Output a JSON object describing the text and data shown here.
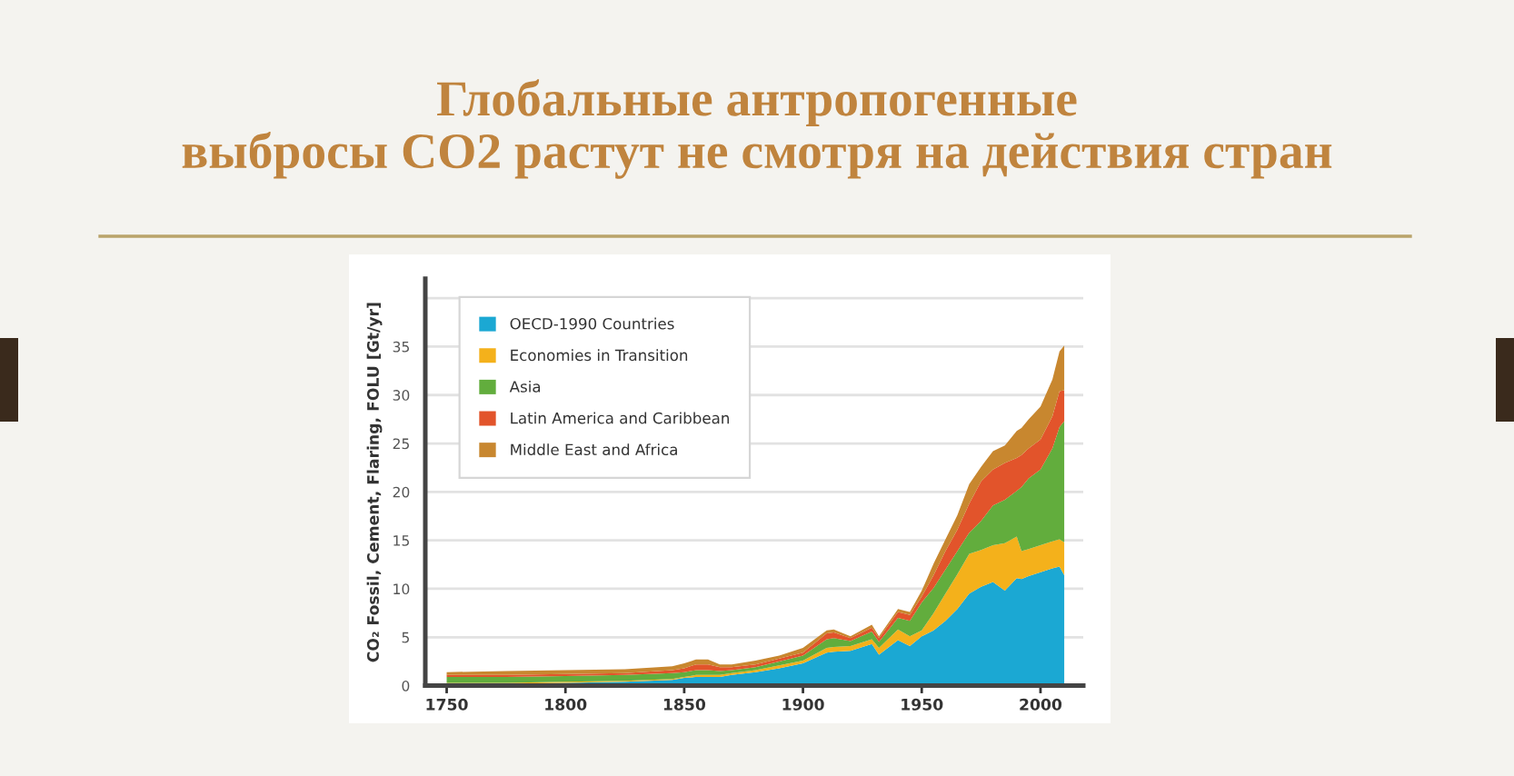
{
  "chart_data": {
    "type": "area",
    "stacked": true,
    "title": "Глобальные антропогенные\nвыбросы CO2 растут не смотря на действия стран",
    "ylabel": "CO₂ Fossil, Cement, Flaring, FOLU [Gt/yr]",
    "x": [
      1750,
      1775,
      1800,
      1825,
      1845,
      1850,
      1855,
      1860,
      1865,
      1870,
      1880,
      1890,
      1900,
      1910,
      1913,
      1920,
      1929,
      1932,
      1940,
      1945,
      1950,
      1955,
      1960,
      1965,
      1970,
      1975,
      1980,
      1985,
      1990,
      1992,
      1995,
      2000,
      2005,
      2008,
      2010
    ],
    "series": [
      {
        "name": "OECD-1990 Countries",
        "color": "#1ba8d3",
        "values": [
          0.2,
          0.2,
          0.3,
          0.4,
          0.6,
          0.8,
          0.9,
          0.9,
          0.9,
          1.1,
          1.4,
          1.8,
          2.3,
          3.4,
          3.5,
          3.6,
          4.3,
          3.2,
          4.7,
          4.1,
          5.1,
          5.7,
          6.7,
          7.9,
          9.5,
          10.2,
          10.7,
          9.8,
          11.1,
          11.0,
          11.3,
          11.7,
          12.1,
          12.3,
          11.4
        ]
      },
      {
        "name": "Economies in Transition",
        "color": "#f4b11b",
        "values": [
          0.1,
          0.1,
          0.1,
          0.1,
          0.1,
          0.1,
          0.2,
          0.2,
          0.2,
          0.2,
          0.2,
          0.3,
          0.3,
          0.5,
          0.5,
          0.5,
          0.5,
          0.7,
          1.1,
          1.0,
          0.6,
          1.8,
          2.8,
          3.6,
          4.1,
          3.8,
          3.8,
          4.9,
          4.3,
          2.9,
          2.8,
          2.8,
          2.8,
          2.8,
          3.4
        ]
      },
      {
        "name": "Asia",
        "color": "#62ad3d",
        "values": [
          0.6,
          0.6,
          0.6,
          0.6,
          0.6,
          0.5,
          0.5,
          0.5,
          0.4,
          0.3,
          0.3,
          0.4,
          0.5,
          0.9,
          0.9,
          0.5,
          0.8,
          0.6,
          1.2,
          1.6,
          2.9,
          2.6,
          2.5,
          2.4,
          2.2,
          3.0,
          4.1,
          4.5,
          4.7,
          6.6,
          7.3,
          7.8,
          9.6,
          11.6,
          12.5
        ]
      },
      {
        "name": "Latin America and Caribbean",
        "color": "#e2542b",
        "values": [
          0.2,
          0.2,
          0.2,
          0.2,
          0.3,
          0.4,
          0.6,
          0.6,
          0.4,
          0.3,
          0.3,
          0.3,
          0.3,
          0.6,
          0.6,
          0.3,
          0.4,
          0.4,
          0.6,
          0.6,
          0.6,
          1.3,
          1.9,
          2.2,
          3.0,
          4.1,
          3.7,
          3.8,
          3.4,
          3.3,
          3.1,
          3.1,
          3.3,
          3.7,
          3.2
        ]
      },
      {
        "name": "Middle East and Africa",
        "color": "#c8872f",
        "values": [
          0.3,
          0.4,
          0.4,
          0.4,
          0.4,
          0.5,
          0.5,
          0.5,
          0.3,
          0.3,
          0.4,
          0.3,
          0.5,
          0.3,
          0.3,
          0.2,
          0.3,
          0.2,
          0.3,
          0.3,
          0.6,
          1.2,
          1.2,
          1.5,
          2.0,
          1.5,
          1.9,
          1.8,
          2.8,
          2.8,
          3.0,
          3.4,
          3.8,
          4.1,
          4.6
        ]
      }
    ],
    "xlim": [
      1741,
      2018
    ],
    "xticks": [
      1750,
      1800,
      1850,
      1900,
      1950,
      2000
    ],
    "ylim": [
      0,
      42
    ],
    "yticks": [
      0,
      5,
      10,
      15,
      20,
      25,
      30,
      35,
      {
        "value": 40,
        "label": null
      }
    ],
    "grid": "y",
    "legend": "top left"
  }
}
